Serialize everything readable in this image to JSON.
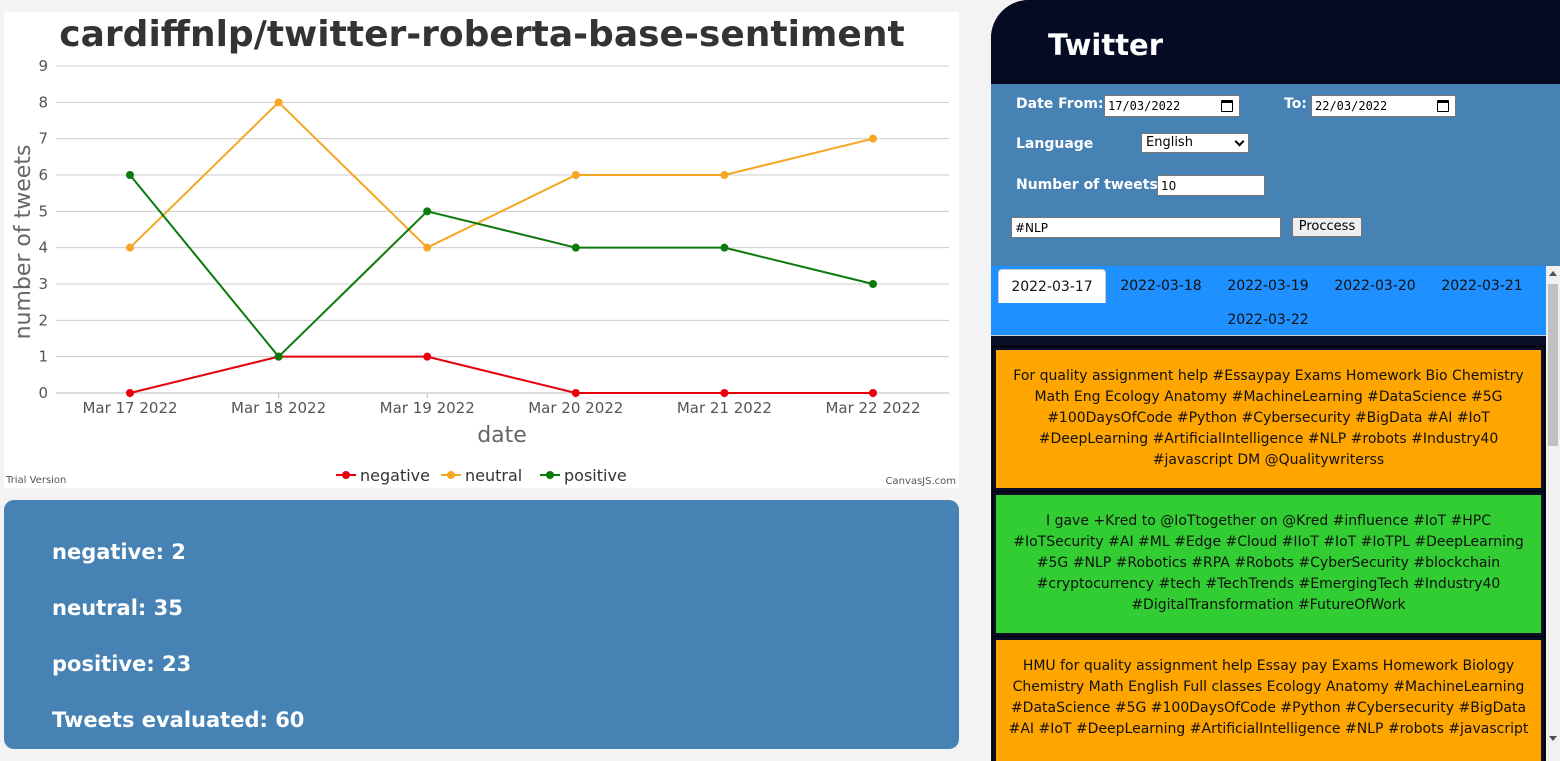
{
  "chart_data": {
    "type": "line",
    "title": "cardiffnlp/twitter-roberta-base-sentiment",
    "xlabel": "date",
    "ylabel": "number of tweets",
    "categories": [
      "Mar 17 2022",
      "Mar 18 2022",
      "Mar 19 2022",
      "Mar 20 2022",
      "Mar 21 2022",
      "Mar 22 2022"
    ],
    "ylim": [
      0,
      9
    ],
    "yticks": [
      "0",
      "1",
      "2",
      "3",
      "4",
      "5",
      "6",
      "7",
      "8",
      "9"
    ],
    "grid": true,
    "legend_position": "bottom",
    "series": [
      {
        "name": "negative",
        "color": "#e8000b",
        "values": [
          0,
          1,
          1,
          0,
          0,
          0
        ]
      },
      {
        "name": "neutral",
        "color": "#f5a623",
        "values": [
          4,
          8,
          4,
          6,
          6,
          7
        ]
      },
      {
        "name": "positive",
        "color": "#0b7a0b",
        "values": [
          6,
          1,
          5,
          4,
          4,
          3
        ]
      }
    ],
    "credit_left": "Trial Version",
    "credit_right": "CanvasJS.com"
  },
  "summary": {
    "negative": "negative: 2",
    "neutral": "neutral: 35",
    "positive": "positive: 23",
    "evaluated": "Tweets evaluated: 60"
  },
  "twitter": {
    "title": "Twitter",
    "date_from_label": "Date From:",
    "date_from_value": "17/03/2022",
    "to_label": "To:",
    "to_value": "22/03/2022",
    "language_label": "Language",
    "language_value": "English",
    "count_label": "Number of tweets",
    "count_value": "10",
    "query_value": "#NLP",
    "process_label": "Proccess",
    "tabs": [
      "2022-03-17",
      "2022-03-18",
      "2022-03-19",
      "2022-03-20",
      "2022-03-21",
      "2022-03-22"
    ],
    "tweets": [
      {
        "text": "For quality assignment help #Essaypay Exams Homework Bio Chemistry Math Eng Ecology Anatomy #MachineLearning #DataScience #5G #100DaysOfCode #Python #Cybersecurity #BigData #AI #IoT #DeepLearning #ArtificialIntelligence #NLP #robots #Industry40 #javascript DM @Qualitywriterss",
        "color": "#ffa500"
      },
      {
        "text": "I gave +Kred to @IoTtogether on @Kred #influence #IoT #HPC #IoTSecurity #AI #ML #Edge #Cloud #IIoT #IoT #IoTPL #DeepLearning #5G #NLP #Robotics #RPA #Robots #CyberSecurity #blockchain #cryptocurrency #tech #TechTrends #EmergingTech #Industry40 #DigitalTransformation #FutureOfWork",
        "color": "#32cd32"
      },
      {
        "text": "HMU for quality assignment help Essay pay Exams Homework Biology Chemistry Math English Full classes Ecology Anatomy #MachineLearning #DataScience #5G #100DaysOfCode #Python #Cybersecurity #BigData #AI #IoT #DeepLearning #ArtificialIntelligence #NLP #robots #javascript",
        "color": "#ffa500"
      }
    ]
  }
}
